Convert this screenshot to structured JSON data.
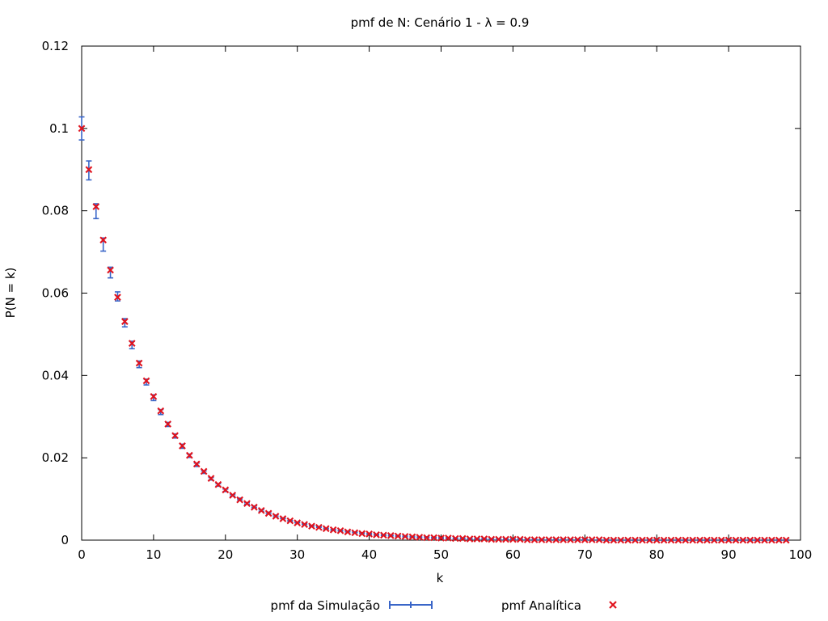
{
  "chart_data": {
    "type": "scatter",
    "title": "pmf de N: Cenário 1 - λ = 0.9",
    "xlabel": "k",
    "ylabel": "P(N = k)",
    "xlim": [
      0,
      100
    ],
    "ylim": [
      0,
      0.12
    ],
    "xticks": [
      "0",
      "10",
      "20",
      "30",
      "40",
      "50",
      "60",
      "70",
      "80",
      "90",
      "100"
    ],
    "yticks": [
      "0",
      "0.02",
      "0.04",
      "0.06",
      "0.08",
      "0.1",
      "0.12"
    ],
    "grid": false,
    "legend_position": "bottom",
    "series": [
      {
        "name": "pmf da Simulação",
        "style": "errorbars",
        "color": "#3a66c8",
        "x_start": 0,
        "y": [
          0.1,
          0.0898,
          0.0799,
          0.0718,
          0.065,
          0.0592,
          0.0528,
          0.0474,
          0.0427,
          0.0384,
          0.0346,
          0.0311,
          0.0281,
          0.0253,
          0.0228,
          0.0205,
          0.0183,
          0.0165,
          0.0149,
          0.0134,
          0.0121,
          0.0109,
          0.01,
          0.0089,
          0.0081,
          0.0072,
          0.0066,
          0.0059,
          0.0053,
          0.0047,
          0.0043,
          0.0039,
          0.0035,
          0.0032,
          0.0028,
          0.0025,
          0.0023,
          0.0021,
          0.0019,
          0.0017,
          0.0015,
          0.0013,
          0.0012,
          0.0011,
          0.001,
          0.0009,
          0.0008,
          0.0007,
          0.0007,
          0.0006,
          0.0005,
          0.0005,
          0.0004,
          0.0004,
          0.0003,
          0.0003,
          0.0003,
          0.0002,
          0.0002,
          0.0002,
          0.0002,
          0.0002,
          0.0001,
          0.0001,
          0.0001,
          0.0001,
          0.0001,
          0.0001,
          0.0001,
          0.0001,
          0.0001,
          0.0,
          0.0,
          0.0,
          0.0,
          0.0,
          0.0,
          0.0,
          0.0,
          0.0,
          0.0,
          0.0,
          0.0,
          0.0,
          0.0,
          0.0,
          0.0,
          0.0,
          0.0,
          0.0,
          0.0,
          0.0,
          0.0,
          0.0,
          0.0,
          0.0,
          0.0,
          0.0,
          0.0
        ],
        "err": [
          0.0028,
          0.0023,
          0.0018,
          0.0016,
          0.0013,
          0.0011,
          0.001,
          0.0009,
          0.0008,
          0.0007,
          0.0007,
          0.0006,
          0.0005,
          0.0005,
          0.0005,
          0.0004,
          0.0004,
          0.0003,
          0.0003,
          0.0003,
          0.0003,
          0.0002,
          0.0002,
          0.0002,
          0.0002,
          0.0002,
          0.0002,
          0.0002,
          0.0001,
          0.0001,
          0.0001,
          0.0001,
          0.0001,
          0.0001,
          0.0001,
          0.0001,
          0.0001,
          0.0001,
          0.0001,
          0.0001,
          0.0001,
          0.0001,
          0.0001,
          0.0001,
          0.0001,
          0.0001,
          0.0001,
          0.0001,
          0.0001,
          0.0001,
          0.0001,
          0.0001,
          0.0001,
          0.0001,
          0.0001,
          0.0001,
          0.0001,
          0.0001,
          0.0001,
          0.0001,
          0.0001,
          0.0001,
          0.0001,
          0.0001,
          0.0001,
          0.0001,
          0.0001,
          0.0001,
          0.0001,
          0.0001,
          0.0001,
          0.0001,
          0.0001,
          0.0001,
          0.0001,
          0.0001,
          0.0001,
          0.0001,
          0.0001,
          0.0001,
          0.0001,
          0.0001,
          0.0001,
          0.0001,
          0.0001,
          0.0001,
          0.0001,
          0.0001,
          0.0001,
          0.0001,
          0.0001,
          0.0001,
          0.0001,
          0.0001,
          0.0001,
          0.0001,
          0.0001,
          0.0001,
          0.0001
        ]
      },
      {
        "name": "pmf Analítica",
        "style": "points-x",
        "color": "#e0131e",
        "x_start": 0,
        "y": [
          0.1,
          0.09,
          0.081,
          0.0729,
          0.0656,
          0.059,
          0.0531,
          0.0478,
          0.043,
          0.0387,
          0.0349,
          0.0314,
          0.0282,
          0.0254,
          0.0229,
          0.0206,
          0.0185,
          0.0167,
          0.015,
          0.0135,
          0.0122,
          0.0109,
          0.0098,
          0.0089,
          0.008,
          0.0072,
          0.0065,
          0.0058,
          0.0052,
          0.0047,
          0.0042,
          0.0038,
          0.0034,
          0.0031,
          0.0028,
          0.0025,
          0.0023,
          0.002,
          0.0018,
          0.0016,
          0.0015,
          0.0013,
          0.0012,
          0.0011,
          0.001,
          0.0009,
          0.0008,
          0.0007,
          0.0006,
          0.0006,
          0.0005,
          0.0005,
          0.0004,
          0.0004,
          0.0003,
          0.0003,
          0.0003,
          0.0002,
          0.0002,
          0.0002,
          0.0002,
          0.0002,
          0.0001,
          0.0001,
          0.0001,
          0.0001,
          0.0001,
          0.0001,
          0.0001,
          0.0001,
          0.0001,
          0.0001,
          0.0001,
          0.0,
          0.0,
          0.0,
          0.0,
          0.0,
          0.0,
          0.0,
          0.0,
          0.0,
          0.0,
          0.0,
          0.0,
          0.0,
          0.0,
          0.0,
          0.0,
          0.0,
          0.0,
          0.0,
          0.0,
          0.0,
          0.0,
          0.0,
          0.0,
          0.0,
          0.0
        ]
      }
    ]
  }
}
